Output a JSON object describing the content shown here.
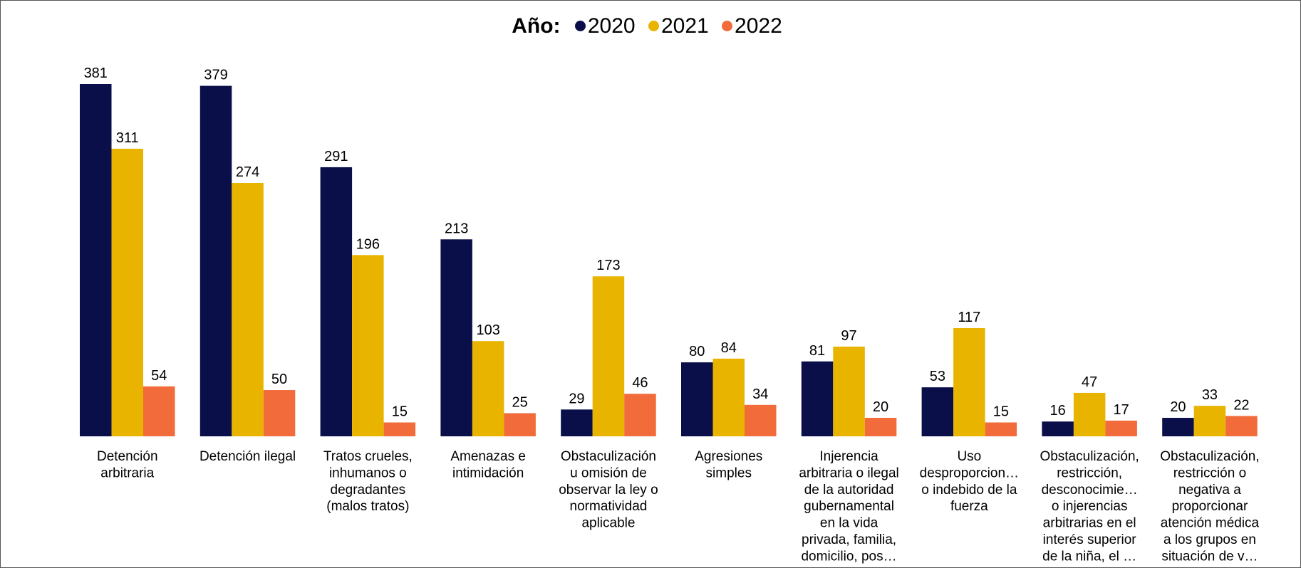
{
  "chart_data": {
    "type": "bar",
    "legend_title": "Año:",
    "legend_placement": "top-center",
    "grid": false,
    "ylim": [
      0,
      381
    ],
    "categories": [
      [
        "Detención",
        "arbitraria"
      ],
      [
        "Detención ilegal"
      ],
      [
        "Tratos crueles,",
        "inhumanos o",
        "degradantes",
        "(malos tratos)"
      ],
      [
        "Amenazas e",
        "intimidación"
      ],
      [
        "Obstaculización",
        "u omisión de",
        "observar la ley o",
        "normatividad",
        "aplicable"
      ],
      [
        "Agresiones",
        "simples"
      ],
      [
        "Injerencia",
        "arbitraria o ilegal",
        "de la autoridad",
        "gubernamental",
        "en la vida",
        "privada, familia,",
        "domicilio, pos…"
      ],
      [
        "Uso",
        "desproporcion…",
        "o indebido de la",
        "fuerza"
      ],
      [
        "Obstaculización,",
        "restricción,",
        "desconocimie…",
        "o injerencias",
        "arbitrarias en el",
        "interés superior",
        "de la niña, el …"
      ],
      [
        "Obstaculización,",
        "restricción o",
        "negativa a",
        "proporcionar",
        "atención médica",
        "a los grupos en",
        "situación de v…"
      ]
    ],
    "series": [
      {
        "name": "2020",
        "color": "#0a0f4a",
        "values": [
          381,
          379,
          291,
          213,
          29,
          80,
          81,
          53,
          16,
          20
        ]
      },
      {
        "name": "2021",
        "color": "#e8b400",
        "values": [
          311,
          274,
          196,
          103,
          173,
          84,
          97,
          117,
          47,
          33
        ]
      },
      {
        "name": "2022",
        "color": "#f26b3a",
        "values": [
          54,
          50,
          15,
          25,
          46,
          34,
          20,
          15,
          17,
          22
        ]
      }
    ]
  }
}
